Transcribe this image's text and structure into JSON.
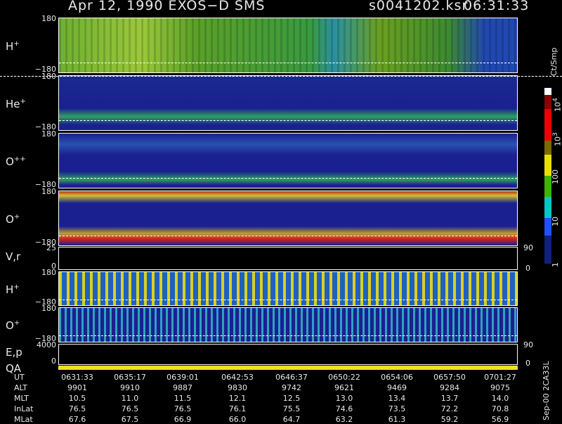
{
  "header": {
    "title": "Apr 12, 1990   EXOS−D SMS",
    "file": "s0041202.ksr",
    "time": "06:31:33"
  },
  "panels": [
    {
      "label": {
        "base": "H",
        "sup": "+"
      },
      "top_tick": "180",
      "bottom_tick": "−180"
    },
    {
      "label": {
        "base": "He",
        "sup": "+"
      },
      "top_tick": "180",
      "bottom_tick": "−180"
    },
    {
      "label": {
        "base": "O",
        "sup": "++"
      },
      "top_tick": "180",
      "bottom_tick": "−180"
    },
    {
      "label": {
        "base": "O",
        "sup": "+"
      },
      "top_tick": "180",
      "bottom_tick": "−180"
    },
    {
      "label": {
        "base": "V,r"
      },
      "top_tick": "25",
      "bottom_tick": "0",
      "right_top": "90",
      "right_bottom": "0"
    },
    {
      "label": {
        "base": "H",
        "sup": "+"
      },
      "top_tick": "180",
      "bottom_tick": "−180"
    },
    {
      "label": {
        "base": "O",
        "sup": "+"
      },
      "top_tick": "180",
      "bottom_tick": "−180"
    },
    {
      "label": {
        "base": "E,p"
      },
      "label2": "QA",
      "top_tick": "4000",
      "bottom_tick": "0",
      "right_top": "90",
      "right_bottom": "0"
    }
  ],
  "colorbar": {
    "title": "Ct/Smp",
    "labels": [
      {
        "base": "10",
        "sup": "4"
      },
      {
        "base": "10",
        "sup": "3"
      },
      {
        "base": "100"
      },
      {
        "base": "10"
      },
      {
        "base": "1"
      }
    ]
  },
  "footer_note": "Sep-00 2CA33L",
  "table": {
    "rows": [
      {
        "label": "UT",
        "values": [
          "0631:33",
          "0635:17",
          "0639:01",
          "0642:53",
          "0646:37",
          "0650:22",
          "0654:06",
          "0657:50",
          "0701:27"
        ]
      },
      {
        "label": "ALT",
        "values": [
          "9901",
          "9910",
          "9887",
          "9830",
          "9742",
          "9621",
          "9469",
          "9284",
          "9075"
        ]
      },
      {
        "label": "MLT",
        "values": [
          "10.5",
          "11.0",
          "11.5",
          "12.1",
          "12.5",
          "13.0",
          "13.4",
          "13.7",
          "14.0"
        ]
      },
      {
        "label": "InLat",
        "values": [
          "76.5",
          "76.5",
          "76.5",
          "76.1",
          "75.5",
          "74.6",
          "73.5",
          "72.2",
          "70.8"
        ]
      },
      {
        "label": "MLat",
        "values": [
          "67.6",
          "67.5",
          "66.9",
          "66.0",
          "64.7",
          "63.2",
          "61.3",
          "59.2",
          "56.9"
        ]
      }
    ]
  }
}
